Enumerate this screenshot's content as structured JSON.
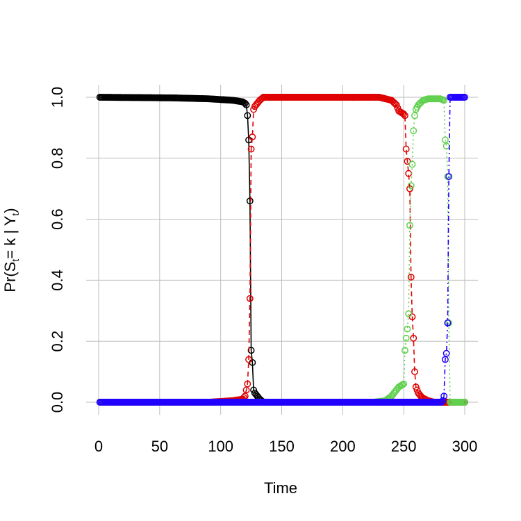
{
  "chart_data": {
    "type": "line",
    "xlabel": "Time",
    "ylabel_parts": {
      "pre": "Pr(S",
      "sub1": "t",
      "mid": "= k | Y",
      "sub2": "t",
      "post": ")"
    },
    "xlim": [
      0,
      300
    ],
    "ylim": [
      0,
      1
    ],
    "x_ticks": [
      "0",
      "50",
      "100",
      "150",
      "200",
      "250",
      "300"
    ],
    "y_ticks": [
      "0.0",
      "0.2",
      "0.4",
      "0.6",
      "0.8",
      "1.0"
    ],
    "grid": true,
    "n_points": 300,
    "series": [
      {
        "color": "#000000",
        "line_style": "solid",
        "keyframes": [
          [
            1,
            1.0
          ],
          [
            60,
            0.998
          ],
          [
            90,
            0.995
          ],
          [
            110,
            0.99
          ],
          [
            118,
            0.985
          ],
          [
            120,
            0.98
          ],
          [
            121,
            0.975
          ],
          [
            122,
            0.94
          ],
          [
            123,
            0.86
          ],
          [
            124,
            0.66
          ],
          [
            125,
            0.17
          ],
          [
            126,
            0.13
          ],
          [
            127,
            0.04
          ],
          [
            128,
            0.03
          ],
          [
            130,
            0.02
          ],
          [
            132,
            0.01
          ],
          [
            135,
            0.0
          ],
          [
            300,
            0.0
          ]
        ]
      },
      {
        "color": "#DF0000",
        "line_style": "dashed",
        "keyframes": [
          [
            1,
            0.0
          ],
          [
            90,
            0.0
          ],
          [
            110,
            0.005
          ],
          [
            118,
            0.01
          ],
          [
            120,
            0.02
          ],
          [
            122,
            0.06
          ],
          [
            123,
            0.14
          ],
          [
            124,
            0.34
          ],
          [
            125,
            0.83
          ],
          [
            126,
            0.87
          ],
          [
            127,
            0.96
          ],
          [
            128,
            0.97
          ],
          [
            130,
            0.98
          ],
          [
            132,
            0.99
          ],
          [
            135,
            1.0
          ],
          [
            230,
            1.0
          ],
          [
            240,
            0.99
          ],
          [
            244,
            0.975
          ],
          [
            246,
            0.955
          ],
          [
            248,
            0.95
          ],
          [
            250,
            0.945
          ],
          [
            251,
            0.94
          ],
          [
            252,
            0.83
          ],
          [
            253,
            0.79
          ],
          [
            254,
            0.75
          ],
          [
            255,
            0.7
          ],
          [
            256,
            0.41
          ],
          [
            257,
            0.28
          ],
          [
            258,
            0.21
          ],
          [
            259,
            0.1
          ],
          [
            260,
            0.05
          ],
          [
            262,
            0.03
          ],
          [
            265,
            0.015
          ],
          [
            270,
            0.005
          ],
          [
            275,
            0.0
          ],
          [
            300,
            0.0
          ]
        ]
      },
      {
        "color": "#61D04F",
        "line_style": "dotted",
        "keyframes": [
          [
            1,
            0.0
          ],
          [
            225,
            0.0
          ],
          [
            235,
            0.005
          ],
          [
            240,
            0.02
          ],
          [
            244,
            0.04
          ],
          [
            246,
            0.05
          ],
          [
            248,
            0.055
          ],
          [
            250,
            0.06
          ],
          [
            251,
            0.17
          ],
          [
            252,
            0.21
          ],
          [
            253,
            0.24
          ],
          [
            254,
            0.29
          ],
          [
            255,
            0.58
          ],
          [
            256,
            0.71
          ],
          [
            257,
            0.78
          ],
          [
            258,
            0.89
          ],
          [
            259,
            0.94
          ],
          [
            260,
            0.96
          ],
          [
            262,
            0.975
          ],
          [
            266,
            0.99
          ],
          [
            270,
            0.995
          ],
          [
            280,
            0.995
          ],
          [
            283,
            0.99
          ],
          [
            284,
            0.86
          ],
          [
            285,
            0.84
          ],
          [
            286,
            0.74
          ],
          [
            287,
            0.26
          ],
          [
            288,
            0.0
          ],
          [
            300,
            0.0
          ]
        ]
      },
      {
        "color": "#2200FF",
        "line_style": "dotdash",
        "keyframes": [
          [
            1,
            0.0
          ],
          [
            281,
            0.0
          ],
          [
            282,
            0.005
          ],
          [
            283,
            0.02
          ],
          [
            284,
            0.14
          ],
          [
            285,
            0.16
          ],
          [
            286,
            0.26
          ],
          [
            287,
            0.74
          ],
          [
            288,
            1.0
          ],
          [
            300,
            1.0
          ]
        ]
      }
    ]
  }
}
